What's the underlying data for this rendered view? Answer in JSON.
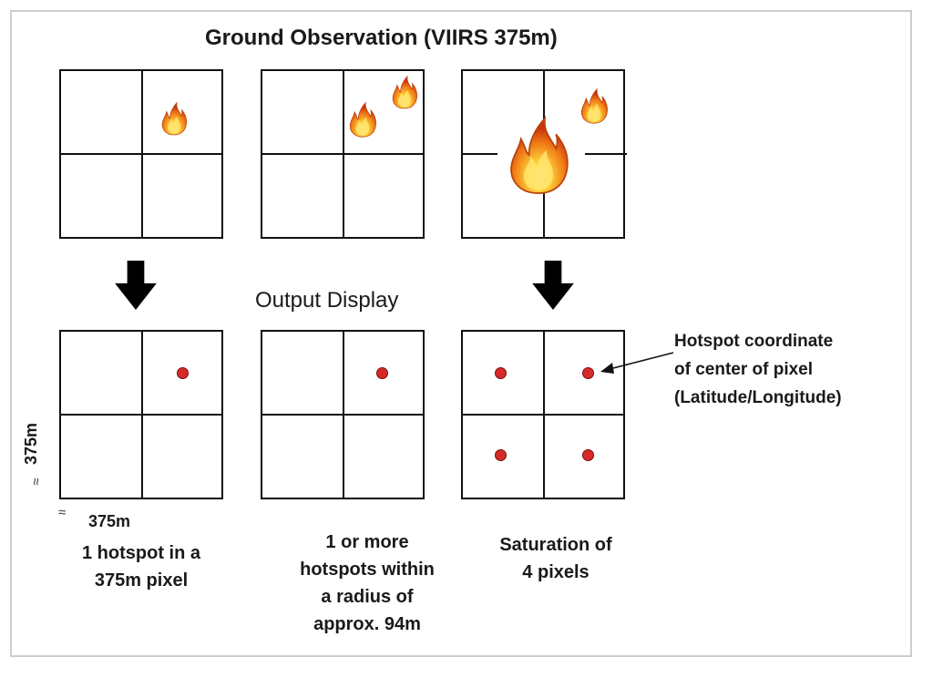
{
  "title": "Ground Observation (VIIRS 375m)",
  "output_title": "Output Display",
  "annotation": [
    "Hotspot coordinate",
    "of center of pixel",
    "(Latitude/Longitude)"
  ],
  "scale": {
    "approx_symbol": "≈",
    "vertical": "375m",
    "horizontal": "375m"
  },
  "captions": {
    "case1": [
      "1 hotspot in a",
      "375m pixel"
    ],
    "case2": [
      "1 or more",
      "hotspots within",
      "a radius of",
      "approx. 94m"
    ],
    "case3": [
      "Saturation of",
      "4 pixels"
    ]
  },
  "icons": {
    "fire": "fire-icon",
    "arrow": "down-arrow-icon",
    "hotspot": "hotspot-dot-icon"
  },
  "colors": {
    "hotspot": "#d62a2a",
    "grid": "#111111",
    "arrow": "#000000",
    "flame_outer": "#f07a16",
    "flame_inner": "#ffd23a"
  }
}
